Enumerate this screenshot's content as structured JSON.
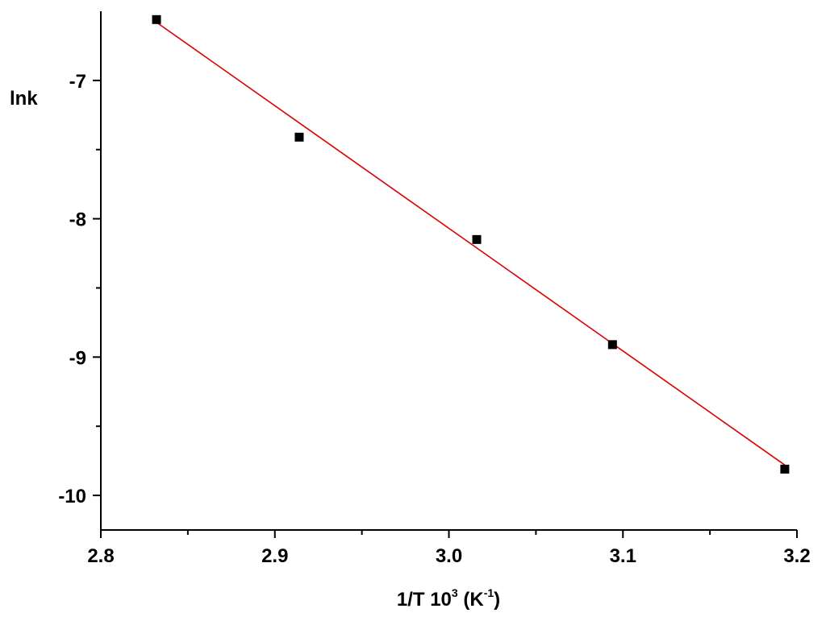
{
  "chart_data": {
    "type": "scatter",
    "title": "",
    "xlabel": {
      "main": "1/T 10",
      "exp": "3",
      "unit_open": " (K",
      "unit_exp": "-1",
      "unit_close": ")"
    },
    "ylabel": "lnk",
    "xlim": [
      2.8,
      3.2
    ],
    "ylim": [
      -10.25,
      -6.5
    ],
    "x_ticks": [
      "2.8",
      "2.9",
      "3.0",
      "3.1",
      "3.2"
    ],
    "y_ticks": [
      "-7",
      "-8",
      "-9",
      "-10"
    ],
    "x_tick_values": [
      2.8,
      2.9,
      3.0,
      3.1,
      3.2
    ],
    "y_tick_values": [
      -7,
      -8,
      -9,
      -10
    ],
    "x_minor_values": [
      2.85,
      2.95,
      3.05,
      3.15
    ],
    "y_minor_values": [
      -7.5,
      -8.5,
      -9.5
    ],
    "grid": false,
    "legend": "none",
    "series": [
      {
        "marker": "square",
        "color": "#000000",
        "points": [
          {
            "x": 2.832,
            "y": -6.56
          },
          {
            "x": 2.914,
            "y": -7.41
          },
          {
            "x": 3.016,
            "y": -8.15
          },
          {
            "x": 3.094,
            "y": -8.91
          },
          {
            "x": 3.193,
            "y": -9.81
          }
        ]
      }
    ],
    "fit_line": {
      "color": "#dd0000",
      "from": {
        "x": 2.832,
        "y": -6.58
      },
      "to": {
        "x": 3.193,
        "y": -9.78
      }
    }
  }
}
